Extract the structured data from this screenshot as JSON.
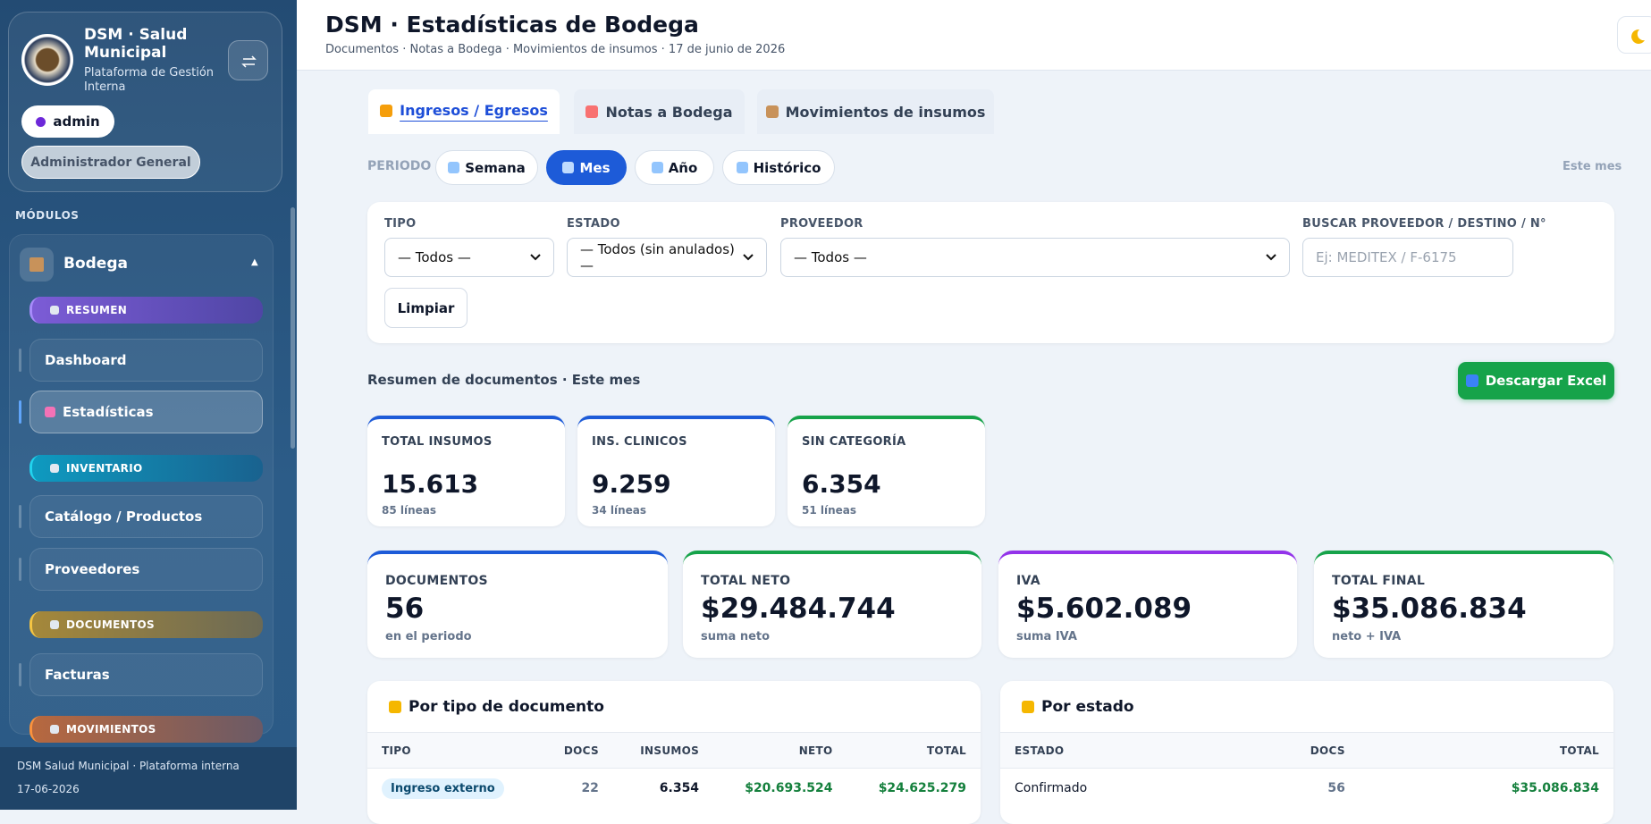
{
  "sidebar": {
    "brand": {
      "title": "DSM · Salud Municipal",
      "subtitle": "Plataforma de Gestión Interna"
    },
    "user": "admin",
    "role": "Administrador General",
    "modules_label": "MÓDULOS",
    "group": "Bodega",
    "items": [
      {
        "kind": "section",
        "label": "RESUMEN"
      },
      {
        "kind": "link",
        "label": "Dashboard"
      },
      {
        "kind": "active",
        "label": "Estadísticas"
      },
      {
        "kind": "section",
        "label": "INVENTARIO"
      },
      {
        "kind": "link",
        "label": "Catálogo / Productos"
      },
      {
        "kind": "link",
        "label": "Proveedores"
      },
      {
        "kind": "section",
        "label": "DOCUMENTOS"
      },
      {
        "kind": "link",
        "label": "Facturas"
      },
      {
        "kind": "section",
        "label": "MOVIMIENTOS"
      }
    ],
    "footer": [
      "DSM Salud Municipal · Plataforma interna",
      "17-06-2026"
    ]
  },
  "header": {
    "title": "DSM · Estadísticas de Bodega",
    "subtitle": "Documentos · Notas a Bodega · Movimientos de insumos · 17 de junio de 2026"
  },
  "tabs": [
    "Ingresos / Egresos",
    "Notas a Bodega",
    "Movimientos de insumos"
  ],
  "period": {
    "label": "PERIODO",
    "options": [
      "Semana",
      "Mes",
      "Año",
      "Histórico"
    ],
    "current": "Este mes"
  },
  "filters": {
    "fields": [
      {
        "label": "TIPO",
        "value": "— Todos —"
      },
      {
        "label": "ESTADO",
        "value": "— Todos (sin anulados) —"
      },
      {
        "label": "PROVEEDOR",
        "value": "— Todos —"
      },
      {
        "label": "BUSCAR PROVEEDOR / DESTINO / N°",
        "placeholder": "Ej: MEDITEX / F-6175"
      }
    ],
    "clear": "Limpiar"
  },
  "summary": {
    "title": "Resumen de documentos · Este mes",
    "download": "Descargar Excel"
  },
  "small_cards": [
    {
      "label": "TOTAL INSUMOS",
      "value": "15.613",
      "note": "85 líneas"
    },
    {
      "label": "INS. CLINICOS",
      "value": "9.259",
      "note": "34 líneas"
    },
    {
      "label": "SIN CATEGORÍA",
      "value": "6.354",
      "note": "51 líneas"
    }
  ],
  "big_cards": [
    {
      "label": "DOCUMENTOS",
      "value": "56",
      "note": "en el periodo"
    },
    {
      "label": "TOTAL NETO",
      "value": "$29.484.744",
      "note": "suma neto"
    },
    {
      "label": "IVA",
      "value": "$5.602.089",
      "note": "suma IVA"
    },
    {
      "label": "TOTAL FINAL",
      "value": "$35.086.834",
      "note": "neto + IVA"
    }
  ],
  "tables": [
    {
      "title": "Por tipo de documento",
      "columns": [
        "TIPO",
        "DOCS",
        "INSUMOS",
        "NETO",
        "TOTAL"
      ],
      "rows": [
        [
          "Ingreso externo",
          "22",
          "6.354",
          "$20.693.524",
          "$24.625.279"
        ]
      ]
    },
    {
      "title": "Por estado",
      "columns": [
        "ESTADO",
        "DOCS",
        "TOTAL"
      ],
      "rows": [
        [
          "Confirmado",
          "56",
          "$35.086.834"
        ]
      ]
    }
  ]
}
